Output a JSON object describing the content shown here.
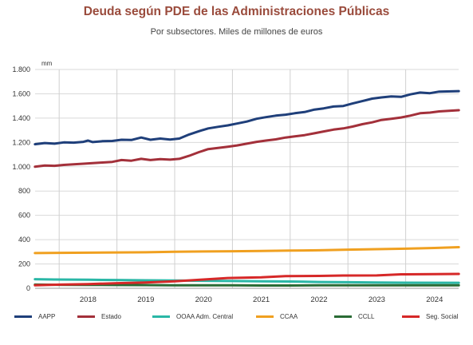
{
  "header": {
    "title": "Deuda según PDE de las Administraciones Públicas",
    "subtitle": "Por subsectores.  Miles de millones de euros"
  },
  "chart_data": {
    "type": "line",
    "unit_label": "mm",
    "ylim": [
      0,
      1800
    ],
    "yticks": [
      0,
      200,
      400,
      600,
      800,
      1000,
      1200,
      1400,
      1600,
      1800
    ],
    "ytick_labels": [
      "0",
      "200",
      "400",
      "600",
      "800",
      "1.000",
      "1.200",
      "1.400",
      "1.600",
      "1.800"
    ],
    "x_range": [
      2017.583,
      2024.917
    ],
    "x_ticks": [
      "2018",
      "2019",
      "2020",
      "2021",
      "2022",
      "2023",
      "2024"
    ],
    "year_boundaries": [
      2018,
      2019,
      2020,
      2021,
      2022,
      2023,
      2024
    ],
    "grid": true,
    "legend_position": "bottom",
    "series": [
      {
        "name": "AAPP",
        "color": "#1f3f7a",
        "points": [
          [
            2017.58,
            1185
          ],
          [
            2017.75,
            1195
          ],
          [
            2017.92,
            1190
          ],
          [
            2018.08,
            1200
          ],
          [
            2018.25,
            1198
          ],
          [
            2018.42,
            1205
          ],
          [
            2018.5,
            1215
          ],
          [
            2018.58,
            1203
          ],
          [
            2018.75,
            1210
          ],
          [
            2018.92,
            1212
          ],
          [
            2019.08,
            1222
          ],
          [
            2019.25,
            1220
          ],
          [
            2019.42,
            1240
          ],
          [
            2019.58,
            1222
          ],
          [
            2019.75,
            1232
          ],
          [
            2019.92,
            1224
          ],
          [
            2020.08,
            1232
          ],
          [
            2020.25,
            1265
          ],
          [
            2020.42,
            1292
          ],
          [
            2020.58,
            1315
          ],
          [
            2020.75,
            1328
          ],
          [
            2020.92,
            1340
          ],
          [
            2021.08,
            1355
          ],
          [
            2021.25,
            1372
          ],
          [
            2021.42,
            1395
          ],
          [
            2021.58,
            1408
          ],
          [
            2021.75,
            1420
          ],
          [
            2021.92,
            1428
          ],
          [
            2022.08,
            1440
          ],
          [
            2022.25,
            1450
          ],
          [
            2022.42,
            1470
          ],
          [
            2022.58,
            1480
          ],
          [
            2022.75,
            1495
          ],
          [
            2022.92,
            1500
          ],
          [
            2023.08,
            1520
          ],
          [
            2023.25,
            1540
          ],
          [
            2023.42,
            1560
          ],
          [
            2023.58,
            1570
          ],
          [
            2023.75,
            1578
          ],
          [
            2023.92,
            1575
          ],
          [
            2024.08,
            1595
          ],
          [
            2024.25,
            1610
          ],
          [
            2024.42,
            1605
          ],
          [
            2024.58,
            1618
          ],
          [
            2024.92,
            1622
          ]
        ]
      },
      {
        "name": "Estado",
        "color": "#a3303a",
        "points": [
          [
            2017.58,
            1000
          ],
          [
            2017.75,
            1010
          ],
          [
            2017.92,
            1008
          ],
          [
            2018.08,
            1015
          ],
          [
            2018.25,
            1020
          ],
          [
            2018.42,
            1025
          ],
          [
            2018.58,
            1030
          ],
          [
            2018.75,
            1035
          ],
          [
            2018.92,
            1040
          ],
          [
            2019.08,
            1055
          ],
          [
            2019.25,
            1050
          ],
          [
            2019.42,
            1065
          ],
          [
            2019.58,
            1055
          ],
          [
            2019.75,
            1062
          ],
          [
            2019.92,
            1058
          ],
          [
            2020.08,
            1065
          ],
          [
            2020.25,
            1090
          ],
          [
            2020.42,
            1120
          ],
          [
            2020.58,
            1145
          ],
          [
            2020.75,
            1155
          ],
          [
            2020.92,
            1165
          ],
          [
            2021.08,
            1175
          ],
          [
            2021.25,
            1190
          ],
          [
            2021.42,
            1205
          ],
          [
            2021.58,
            1215
          ],
          [
            2021.75,
            1225
          ],
          [
            2021.92,
            1240
          ],
          [
            2022.08,
            1250
          ],
          [
            2022.25,
            1260
          ],
          [
            2022.42,
            1275
          ],
          [
            2022.58,
            1290
          ],
          [
            2022.75,
            1305
          ],
          [
            2022.92,
            1315
          ],
          [
            2023.08,
            1330
          ],
          [
            2023.25,
            1350
          ],
          [
            2023.42,
            1365
          ],
          [
            2023.58,
            1385
          ],
          [
            2023.75,
            1395
          ],
          [
            2023.92,
            1405
          ],
          [
            2024.08,
            1420
          ],
          [
            2024.25,
            1440
          ],
          [
            2024.42,
            1445
          ],
          [
            2024.58,
            1455
          ],
          [
            2024.92,
            1465
          ]
        ]
      },
      {
        "name": "OOAA Adm. Central",
        "color": "#2ab7a6",
        "points": [
          [
            2017.58,
            75
          ],
          [
            2017.92,
            72
          ],
          [
            2018.5,
            70
          ],
          [
            2019.0,
            68
          ],
          [
            2019.5,
            66
          ],
          [
            2020.0,
            64
          ],
          [
            2020.5,
            62
          ],
          [
            2021.0,
            60
          ],
          [
            2021.5,
            58
          ],
          [
            2022.0,
            56
          ],
          [
            2022.5,
            52
          ],
          [
            2023.0,
            50
          ],
          [
            2023.5,
            48
          ],
          [
            2024.0,
            46
          ],
          [
            2024.92,
            45
          ]
        ]
      },
      {
        "name": "CCAA",
        "color": "#f0a020",
        "points": [
          [
            2017.58,
            290
          ],
          [
            2018.0,
            292
          ],
          [
            2018.5,
            293
          ],
          [
            2019.0,
            295
          ],
          [
            2019.5,
            296
          ],
          [
            2020.0,
            300
          ],
          [
            2020.5,
            303
          ],
          [
            2021.0,
            305
          ],
          [
            2021.5,
            307
          ],
          [
            2022.0,
            310
          ],
          [
            2022.5,
            313
          ],
          [
            2023.0,
            318
          ],
          [
            2023.5,
            322
          ],
          [
            2024.0,
            326
          ],
          [
            2024.5,
            332
          ],
          [
            2024.92,
            338
          ]
        ]
      },
      {
        "name": "CCLL",
        "color": "#2a6b35",
        "points": [
          [
            2017.58,
            30
          ],
          [
            2018.0,
            29
          ],
          [
            2018.5,
            28
          ],
          [
            2019.0,
            27
          ],
          [
            2019.5,
            26
          ],
          [
            2020.0,
            25
          ],
          [
            2020.5,
            24
          ],
          [
            2021.0,
            24
          ],
          [
            2021.5,
            23
          ],
          [
            2022.0,
            23
          ],
          [
            2022.5,
            24
          ],
          [
            2023.0,
            24
          ],
          [
            2023.5,
            25
          ],
          [
            2024.0,
            25
          ],
          [
            2024.92,
            25
          ]
        ]
      },
      {
        "name": "Seg. Social",
        "color": "#d62828",
        "points": [
          [
            2017.58,
            25
          ],
          [
            2018.0,
            30
          ],
          [
            2018.5,
            35
          ],
          [
            2019.0,
            42
          ],
          [
            2019.5,
            48
          ],
          [
            2020.0,
            58
          ],
          [
            2020.5,
            72
          ],
          [
            2020.92,
            85
          ],
          [
            2021.5,
            90
          ],
          [
            2021.92,
            100
          ],
          [
            2022.5,
            102
          ],
          [
            2022.92,
            105
          ],
          [
            2023.5,
            106
          ],
          [
            2023.92,
            115
          ],
          [
            2024.5,
            116
          ],
          [
            2024.92,
            118
          ]
        ]
      }
    ]
  },
  "legend": {
    "items": [
      {
        "label": "AAPP",
        "color": "#1f3f7a"
      },
      {
        "label": "Estado",
        "color": "#a3303a"
      },
      {
        "label": "OOAA Adm. Central",
        "color": "#2ab7a6"
      },
      {
        "label": "CCAA",
        "color": "#f0a020"
      },
      {
        "label": "CCLL",
        "color": "#2a6b35"
      },
      {
        "label": "Seg. Social",
        "color": "#d62828"
      }
    ]
  }
}
